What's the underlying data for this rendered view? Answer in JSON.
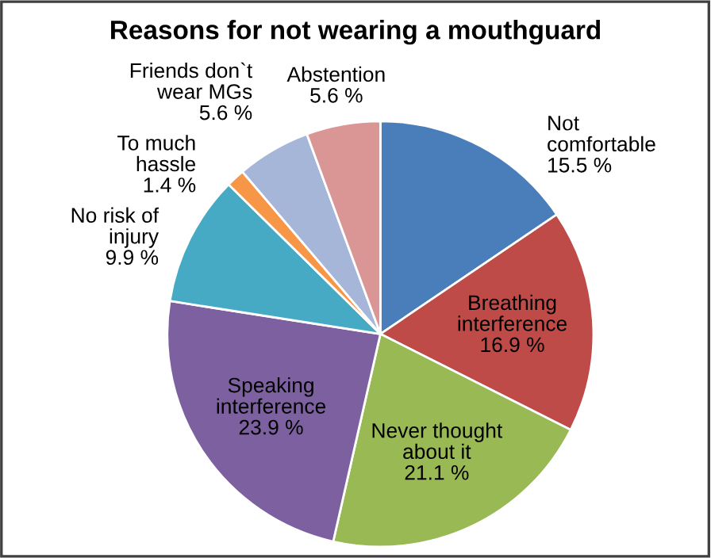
{
  "chart_data": {
    "type": "pie",
    "title": "Reasons for not wearing a mouthguard",
    "categories": [
      "Not\ncomfortable",
      "Breathing\ninterference",
      "Never thought\nabout it",
      "Speaking\ninterference",
      "No risk of\ninjury",
      "To much\nhassle",
      "Friends don`t\nwear MGs",
      "Abstention"
    ],
    "values": [
      15.5,
      16.9,
      21.1,
      23.9,
      9.9,
      1.4,
      5.6,
      5.6
    ],
    "value_labels": [
      "15.5 %",
      "16.9 %",
      "21.1 %",
      "23.9 %",
      "9.9 %",
      "1.4 %",
      "5.6 %",
      "5.6 %"
    ],
    "colors": [
      "#4a7ebb",
      "#be4b48",
      "#98b954",
      "#7d60a0",
      "#46aac5",
      "#f79646",
      "#a5b6d9",
      "#d99694"
    ]
  }
}
